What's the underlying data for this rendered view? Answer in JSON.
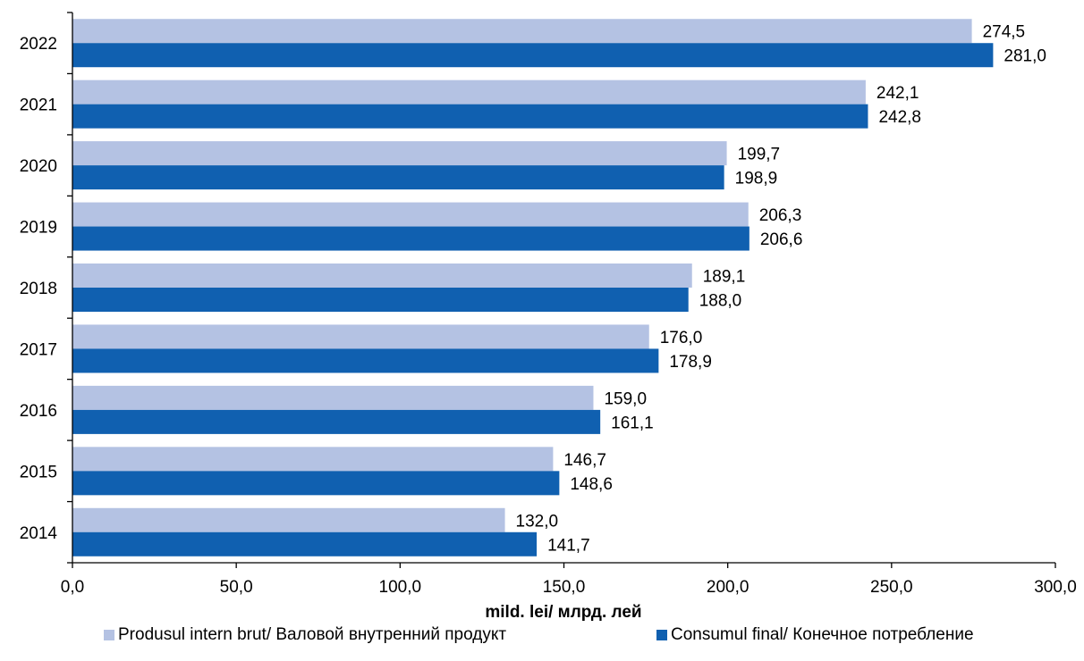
{
  "chart_data": {
    "type": "bar",
    "orientation": "horizontal",
    "categories": [
      "2014",
      "2015",
      "2016",
      "2017",
      "2018",
      "2019",
      "2020",
      "2021",
      "2022"
    ],
    "series": [
      {
        "name": "Produsul intern brut/ Валовой внутренний продукт",
        "color": "#B4C2E3",
        "values": [
          132.0,
          146.7,
          159.0,
          176.0,
          189.1,
          206.3,
          199.7,
          242.1,
          274.5
        ],
        "labels": [
          "132,0",
          "146,7",
          "159,0",
          "176,0",
          "189,1",
          "206,3",
          "199,7",
          "242,1",
          "274,5"
        ]
      },
      {
        "name": "Consumul final/ Конечное потребление",
        "color": "#1060B0",
        "values": [
          141.7,
          148.6,
          161.1,
          178.9,
          188.0,
          206.6,
          198.9,
          242.8,
          281.0
        ],
        "labels": [
          "141,7",
          "148,6",
          "161,1",
          "178,9",
          "188,0",
          "206,6",
          "198,9",
          "242,8",
          "281,0"
        ]
      }
    ],
    "xlim": [
      0,
      300
    ],
    "xticks": [
      0,
      50,
      100,
      150,
      200,
      250,
      300
    ],
    "xtick_labels": [
      "0,0",
      "50,0",
      "100,0",
      "150,0",
      "200,0",
      "250,0",
      "300,0"
    ],
    "xlabel": "mild. lei/ млрд. лей",
    "ylabel": "",
    "title": "",
    "grid": false,
    "legend_position": "bottom"
  }
}
